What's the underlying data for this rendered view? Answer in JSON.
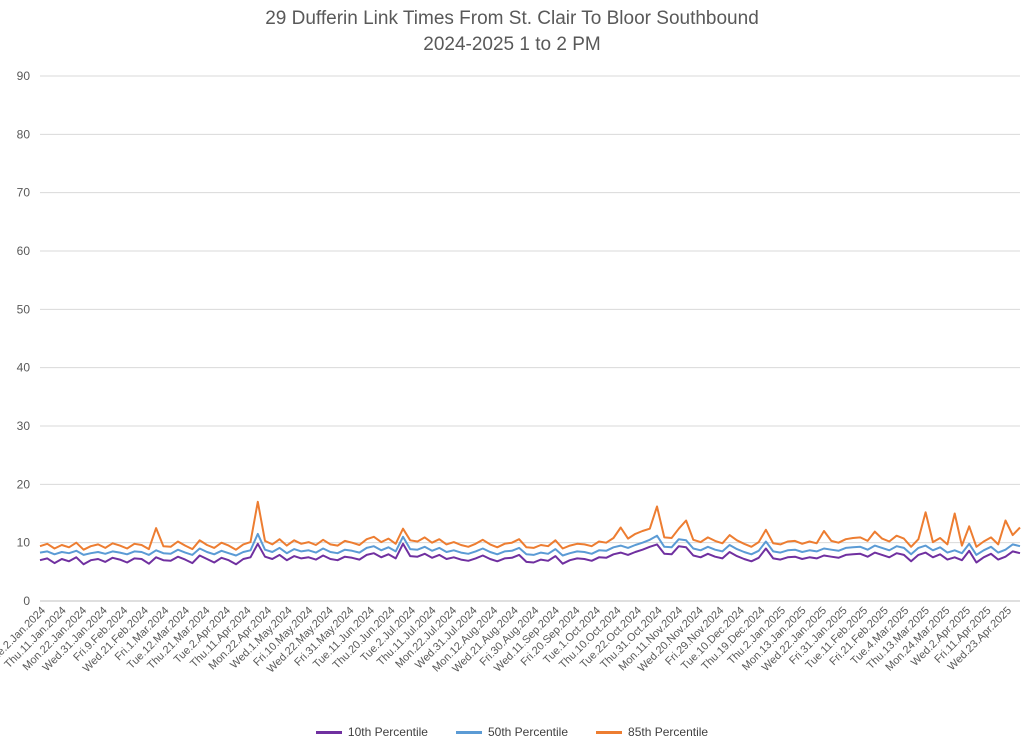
{
  "chart_data": {
    "type": "line",
    "title": "29 Dufferin Link Times From St. Clair To Bloor Southbound",
    "subtitle": "2024-2025 1 to 2 PM",
    "xlabel": "",
    "ylabel": "",
    "ylim": [
      0,
      90
    ],
    "yticks": [
      0,
      10,
      20,
      30,
      40,
      50,
      60,
      70,
      80,
      90
    ],
    "grid": true,
    "legend_position": "bottom",
    "x_start": "2024-01-02",
    "x_end": "2025-04-30",
    "tick_labels": [
      "Tue.2.Jan.2024",
      "Thu.11.Jan.2024",
      "Mon.22.Jan.2024",
      "Wed.31.Jan.2024",
      "Fri.9.Feb.2024",
      "Wed.21.Feb.2024",
      "Fri.1.Mar.2024",
      "Tue.12.Mar.2024",
      "Thu.21.Mar.2024",
      "Tue.2.Apr.2024",
      "Thu.11.Apr.2024",
      "Mon.22.Apr.2024",
      "Wed.1.May.2024",
      "Fri.10.May.2024",
      "Wed.22.May.2024",
      "Fri.31.May.2024",
      "Tue.11.Jun.2024",
      "Thu.20.Jun.2024",
      "Tue.2.Jul.2024",
      "Thu.11.Jul.2024",
      "Mon.22.Jul.2024",
      "Wed.31.Jul.2024",
      "Mon.12.Aug.2024",
      "Wed.21.Aug.2024",
      "Fri.30.Aug.2024",
      "Wed.11.Sep.2024",
      "Fri.20.Sep.2024",
      "Tue.1.Oct.2024",
      "Thu.10.Oct.2024",
      "Tue.22.Oct.2024",
      "Thu.31.Oct.2024",
      "Mon.11.Nov.2024",
      "Wed.20.Nov.2024",
      "Fri.29.Nov.2024",
      "Tue.10.Dec.2024",
      "Thu.19.Dec.2024",
      "Thu.2.Jan.2025",
      "Mon.13.Jan.2025",
      "Wed.22.Jan.2025",
      "Fri.31.Jan.2025",
      "Tue.11.Feb.2025",
      "Fri.21.Feb.2025",
      "Tue.4.Mar.2025",
      "Thu.13.Mar.2025",
      "Mon.24.Mar.2025",
      "Wed.2.Apr.2025",
      "Fri.11.Apr.2025",
      "Wed.23.Apr.2025"
    ],
    "series": [
      {
        "name": "10th Percentile",
        "color": "#7030a0",
        "values": [
          7.0,
          7.3,
          6.5,
          7.2,
          6.8,
          7.5,
          6.3,
          7.0,
          7.2,
          6.7,
          7.4,
          7.1,
          6.6,
          7.3,
          7.2,
          6.4,
          7.5,
          7.0,
          6.9,
          7.6,
          7.1,
          6.5,
          7.8,
          7.2,
          6.6,
          7.4,
          7.0,
          6.3,
          7.2,
          7.5,
          9.8,
          7.6,
          7.2,
          7.9,
          7.0,
          7.7,
          7.3,
          7.5,
          7.1,
          7.8,
          7.2,
          7.0,
          7.6,
          7.4,
          7.1,
          7.9,
          8.2,
          7.5,
          8.0,
          7.3,
          9.8,
          7.7,
          7.6,
          8.1,
          7.4,
          7.9,
          7.2,
          7.5,
          7.1,
          6.9,
          7.3,
          7.8,
          7.2,
          6.8,
          7.3,
          7.4,
          7.9,
          6.7,
          6.6,
          7.1,
          6.9,
          7.7,
          6.4,
          7.0,
          7.3,
          7.2,
          6.9,
          7.5,
          7.4,
          8.0,
          8.3,
          7.9,
          8.4,
          8.8,
          9.3,
          9.7,
          8.1,
          8.0,
          9.4,
          9.2,
          7.8,
          7.5,
          8.1,
          7.6,
          7.3,
          8.4,
          7.7,
          7.2,
          6.8,
          7.4,
          9.0,
          7.3,
          7.1,
          7.5,
          7.6,
          7.2,
          7.5,
          7.3,
          7.8,
          7.6,
          7.4,
          7.9,
          8.0,
          8.1,
          7.6,
          8.3,
          7.9,
          7.5,
          8.2,
          7.9,
          6.8,
          7.9,
          8.3,
          7.5,
          8.0,
          7.1,
          7.5,
          7.0,
          8.6,
          6.6,
          7.5,
          8.1,
          7.1,
          7.6,
          8.5,
          8.2
        ]
      },
      {
        "name": "50th Percentile",
        "color": "#5b9bd5",
        "values": [
          8.3,
          8.5,
          8.0,
          8.4,
          8.2,
          8.6,
          7.9,
          8.2,
          8.4,
          8.1,
          8.5,
          8.3,
          8.0,
          8.5,
          8.4,
          7.9,
          8.7,
          8.2,
          8.1,
          8.8,
          8.3,
          7.9,
          9.0,
          8.4,
          8.0,
          8.6,
          8.2,
          7.8,
          8.4,
          8.7,
          11.5,
          8.8,
          8.4,
          9.1,
          8.2,
          8.9,
          8.5,
          8.7,
          8.3,
          9.0,
          8.4,
          8.2,
          8.8,
          8.6,
          8.3,
          9.1,
          9.4,
          8.7,
          9.2,
          8.5,
          11.0,
          8.9,
          8.8,
          9.3,
          8.6,
          9.1,
          8.4,
          8.7,
          8.3,
          8.1,
          8.5,
          9.0,
          8.4,
          8.0,
          8.5,
          8.6,
          9.1,
          8.0,
          7.9,
          8.3,
          8.1,
          8.9,
          7.8,
          8.2,
          8.5,
          8.4,
          8.1,
          8.7,
          8.6,
          9.2,
          9.5,
          9.1,
          9.6,
          10.0,
          10.5,
          11.2,
          9.3,
          9.2,
          10.6,
          10.4,
          9.0,
          8.7,
          9.3,
          8.8,
          8.5,
          9.6,
          8.9,
          8.4,
          8.0,
          8.6,
          10.2,
          8.5,
          8.3,
          8.7,
          8.8,
          8.4,
          8.7,
          8.5,
          9.0,
          8.8,
          8.6,
          9.1,
          9.2,
          9.3,
          8.8,
          9.5,
          9.1,
          8.7,
          9.4,
          9.1,
          8.0,
          9.1,
          9.5,
          8.7,
          9.2,
          8.3,
          8.7,
          8.2,
          9.8,
          7.9,
          8.7,
          9.3,
          8.3,
          8.8,
          9.7,
          9.4
        ]
      },
      {
        "name": "85th Percentile",
        "color": "#ed7d31",
        "values": [
          9.4,
          9.8,
          9.0,
          9.6,
          9.2,
          10.0,
          8.8,
          9.4,
          9.7,
          9.1,
          9.9,
          9.5,
          9.0,
          9.8,
          9.6,
          8.9,
          12.5,
          9.4,
          9.3,
          10.2,
          9.5,
          8.9,
          10.4,
          9.6,
          9.1,
          10.0,
          9.5,
          8.8,
          9.7,
          10.1,
          17.0,
          10.3,
          9.7,
          10.6,
          9.5,
          10.4,
          9.8,
          10.1,
          9.6,
          10.5,
          9.7,
          9.5,
          10.3,
          10.0,
          9.6,
          10.6,
          11.0,
          10.1,
          10.7,
          9.8,
          12.4,
          10.4,
          10.2,
          10.9,
          10.0,
          10.6,
          9.7,
          10.1,
          9.6,
          9.3,
          9.8,
          10.5,
          9.7,
          9.2,
          9.8,
          10.0,
          10.6,
          9.2,
          9.1,
          9.6,
          9.4,
          10.4,
          9.0,
          9.5,
          9.8,
          9.7,
          9.4,
          10.2,
          10.0,
          10.8,
          12.6,
          10.7,
          11.5,
          12.0,
          12.4,
          16.2,
          10.9,
          10.8,
          12.4,
          13.8,
          10.5,
          10.1,
          10.9,
          10.3,
          9.9,
          11.3,
          10.4,
          9.8,
          9.3,
          10.1,
          12.2,
          9.9,
          9.7,
          10.2,
          10.3,
          9.8,
          10.2,
          9.9,
          12.0,
          10.3,
          10.0,
          10.6,
          10.8,
          10.9,
          10.3,
          11.9,
          10.7,
          10.2,
          11.2,
          10.7,
          9.3,
          10.6,
          15.2,
          10.1,
          10.8,
          9.7,
          15.0,
          9.5,
          12.8,
          9.3,
          10.2,
          10.9,
          9.7,
          13.8,
          11.3,
          12.6
        ]
      }
    ]
  }
}
